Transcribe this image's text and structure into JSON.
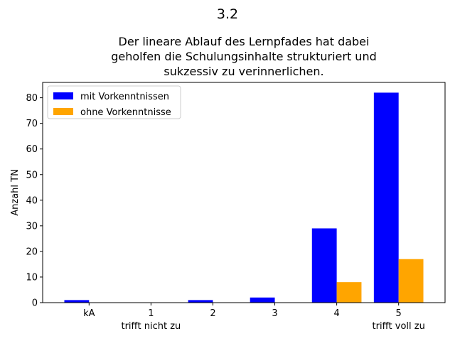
{
  "chart_data": {
    "type": "bar",
    "suptitle": "3.2",
    "title_lines": [
      "Der lineare Ablauf des Lernpfades hat dabei",
      "geholfen die Schulungsinhalte strukturiert und",
      "sukzessiv zu verinnerlichen."
    ],
    "xlabel": "",
    "ylabel": "Anzahl TN",
    "categories": [
      "kA",
      "1",
      "2",
      "3",
      "4",
      "5"
    ],
    "category_sublabels": [
      "",
      "trifft nicht zu",
      "",
      "",
      "",
      "trifft voll zu"
    ],
    "series": [
      {
        "name": "mit Vorkenntnissen",
        "color": "#0000ff",
        "values": [
          1,
          0,
          1,
          2,
          29,
          82
        ]
      },
      {
        "name": "ohne Vorkenntnisse",
        "color": "#ffa500",
        "values": [
          0,
          0,
          0,
          0,
          8,
          17
        ]
      }
    ],
    "ylim": [
      0,
      86
    ],
    "yticks": [
      0,
      10,
      20,
      30,
      40,
      50,
      60,
      70,
      80
    ],
    "grid": false,
    "legend_position": "top-left"
  }
}
